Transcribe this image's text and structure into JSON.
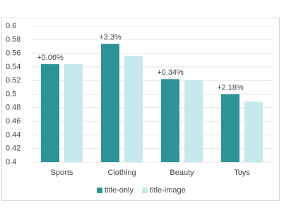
{
  "chart_data": {
    "type": "bar",
    "categories": [
      "Sports",
      "Clothing",
      "Beauty",
      "Toys"
    ],
    "series": [
      {
        "name": "title-only",
        "color": "#2e9399",
        "values": [
          0.544,
          0.574,
          0.522,
          0.5
        ]
      },
      {
        "name": "title-image",
        "color": "#c5e9ec",
        "values": [
          0.544,
          0.556,
          0.521,
          0.489
        ]
      }
    ],
    "annotations": [
      "+0.06%",
      "+3.3%",
      "+0.34%",
      "+2.18%"
    ],
    "ylim": [
      0.4,
      0.6
    ],
    "yticks": [
      0.4,
      0.42,
      0.44,
      0.46,
      0.48,
      0.5,
      0.52,
      0.54,
      0.56,
      0.58,
      0.6
    ],
    "grid": true,
    "legend": "bottom"
  }
}
